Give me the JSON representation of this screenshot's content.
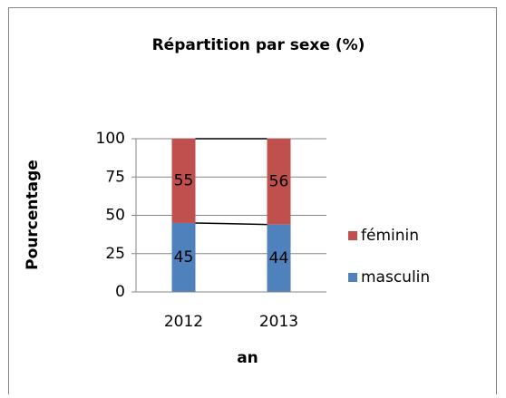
{
  "chart_data": {
    "type": "stacked_bar",
    "title": "Répartition par sexe (%)",
    "x_label": "an",
    "y_label": "Pourcentage",
    "categories": [
      "2012",
      "2013"
    ],
    "series": [
      {
        "name": "masculin",
        "color": "#4f81bd",
        "values": [
          45,
          44
        ]
      },
      {
        "name": "féminin",
        "color": "#c0504d",
        "values": [
          55,
          56
        ]
      }
    ],
    "ylim": [
      0,
      100
    ],
    "yticks": [
      0,
      25,
      50,
      75,
      100
    ],
    "grid": true,
    "series_lines": true,
    "legend": "right"
  }
}
